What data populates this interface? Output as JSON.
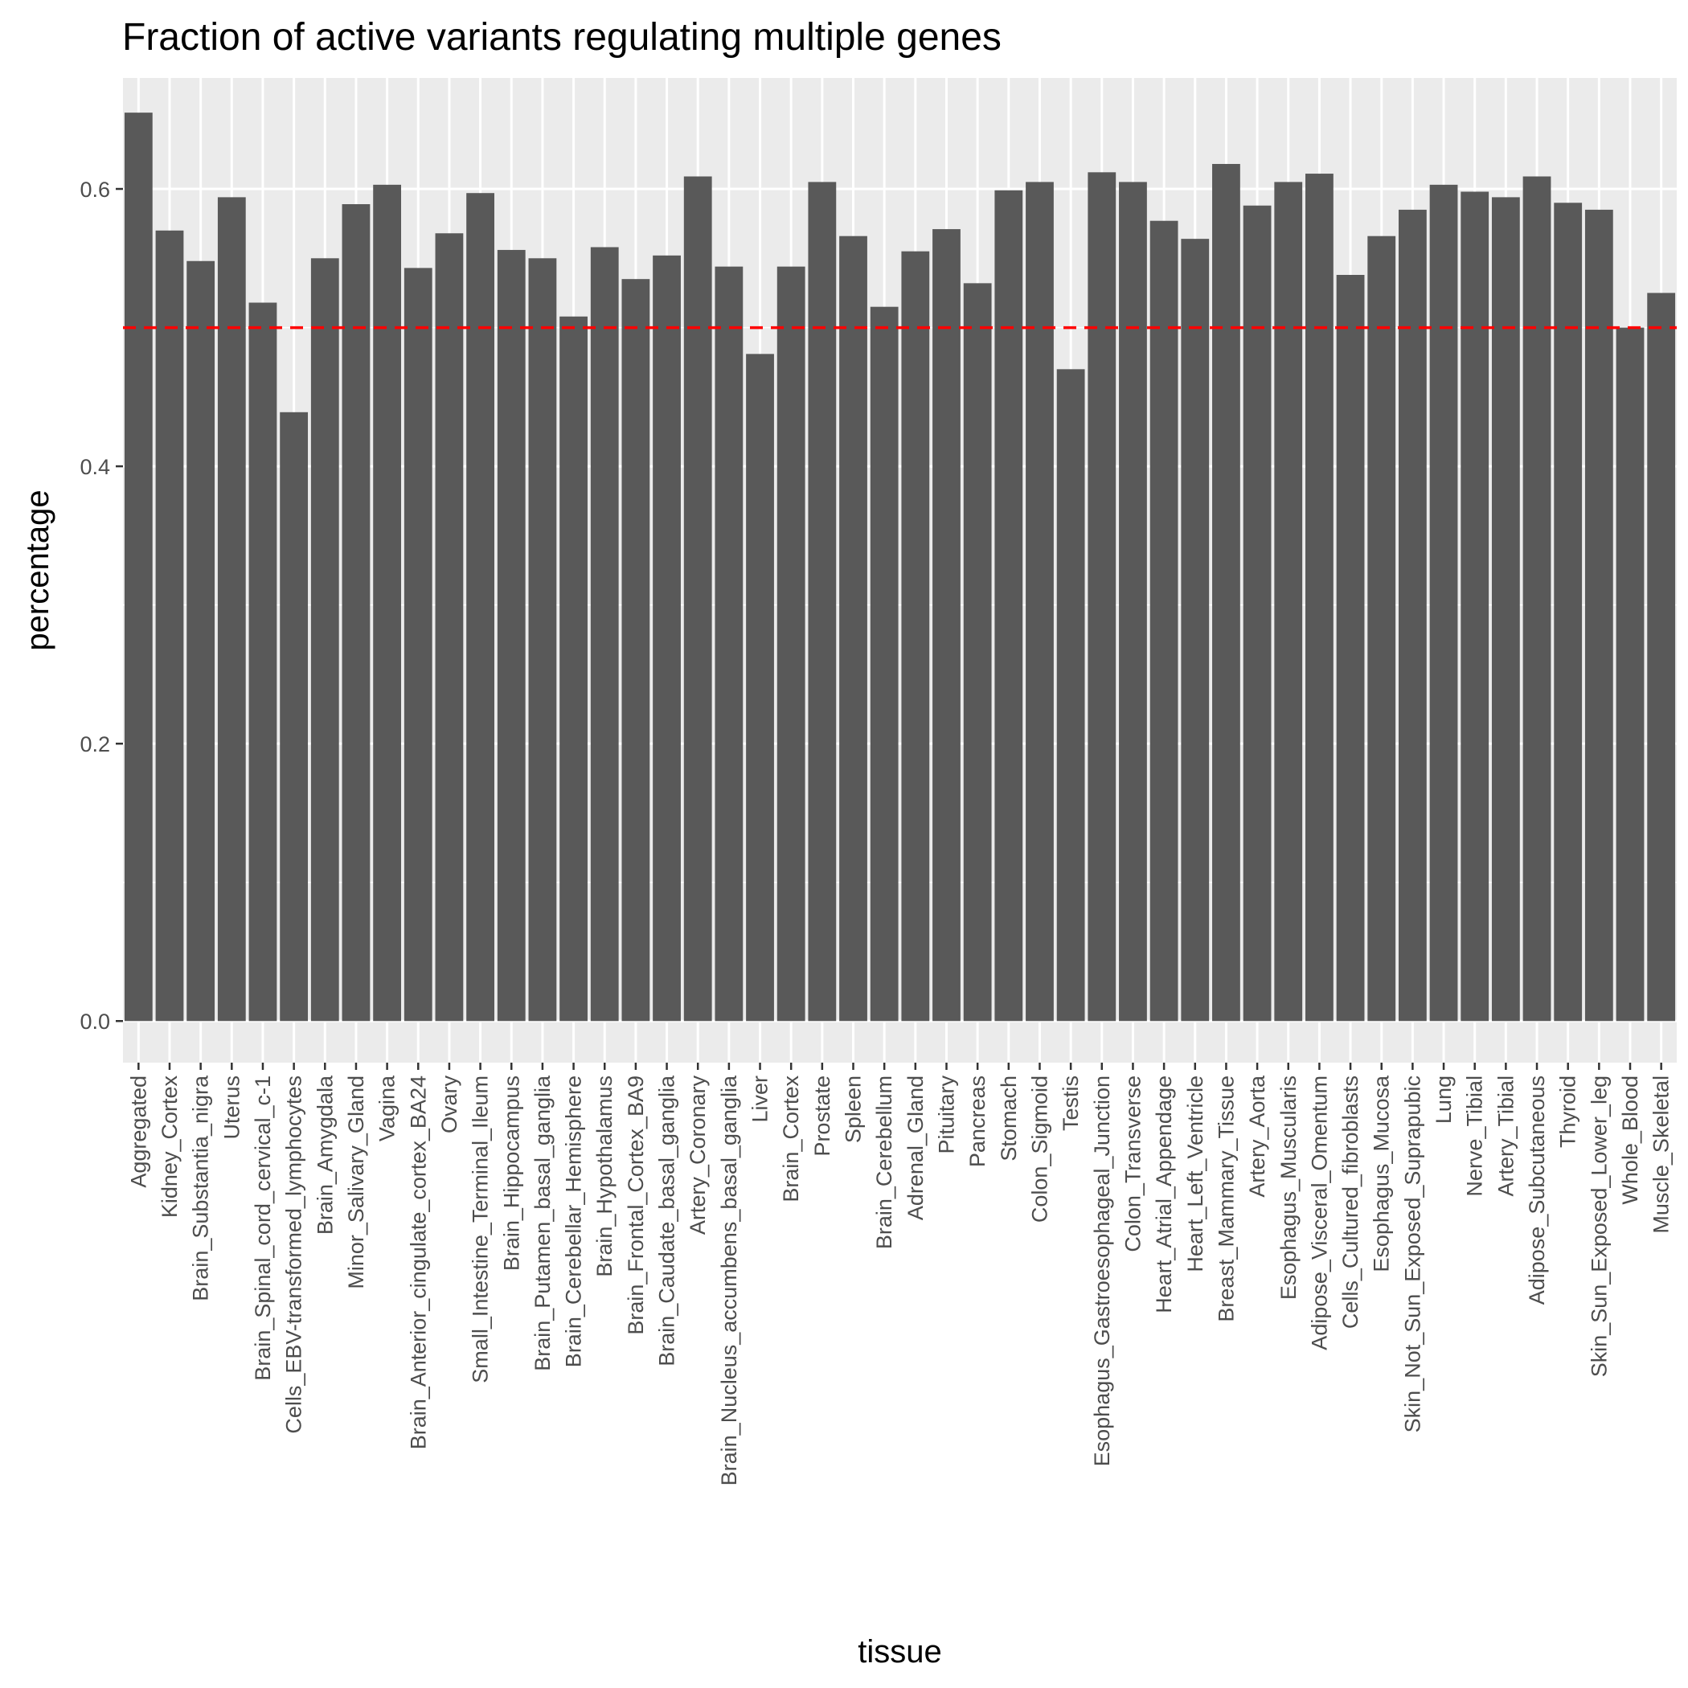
{
  "chart_data": {
    "type": "bar",
    "title": "Fraction of active variants regulating multiple genes",
    "xlabel": "tissue",
    "ylabel": "percentage",
    "ylim": [
      -0.03,
      0.68
    ],
    "yticks": [
      0.0,
      0.2,
      0.4,
      0.6
    ],
    "ytick_labels": [
      "0.0",
      "0.2",
      "0.4",
      "0.6"
    ],
    "grid": true,
    "bar_color": "#595959",
    "panel_color": "#ebebeb",
    "reference_line": {
      "value": 0.5,
      "style": "dashed",
      "color": "#ff0000"
    },
    "categories": [
      "Aggregated",
      "Kidney_Cortex",
      "Brain_Substantia_nigra",
      "Uterus",
      "Brain_Spinal_cord_cervical_c-1",
      "Cells_EBV-transformed_lymphocytes",
      "Brain_Amygdala",
      "Minor_Salivary_Gland",
      "Vagina",
      "Brain_Anterior_cingulate_cortex_BA24",
      "Ovary",
      "Small_Intestine_Terminal_Ileum",
      "Brain_Hippocampus",
      "Brain_Putamen_basal_ganglia",
      "Brain_Cerebellar_Hemisphere",
      "Brain_Hypothalamus",
      "Brain_Frontal_Cortex_BA9",
      "Brain_Caudate_basal_ganglia",
      "Artery_Coronary",
      "Brain_Nucleus_accumbens_basal_ganglia",
      "Liver",
      "Brain_Cortex",
      "Prostate",
      "Spleen",
      "Brain_Cerebellum",
      "Adrenal_Gland",
      "Pituitary",
      "Pancreas",
      "Stomach",
      "Colon_Sigmoid",
      "Testis",
      "Esophagus_Gastroesophageal_Junction",
      "Colon_Transverse",
      "Heart_Atrial_Appendage",
      "Heart_Left_Ventricle",
      "Breast_Mammary_Tissue",
      "Artery_Aorta",
      "Esophagus_Muscularis",
      "Adipose_Visceral_Omentum",
      "Cells_Cultured_fibroblasts",
      "Esophagus_Mucosa",
      "Skin_Not_Sun_Exposed_Suprapubic",
      "Lung",
      "Nerve_Tibial",
      "Artery_Tibial",
      "Adipose_Subcutaneous",
      "Thyroid",
      "Skin_Sun_Exposed_Lower_leg",
      "Whole_Blood",
      "Muscle_Skeletal"
    ],
    "values": [
      0.655,
      0.57,
      0.548,
      0.594,
      0.518,
      0.439,
      0.55,
      0.589,
      0.603,
      0.543,
      0.568,
      0.597,
      0.556,
      0.55,
      0.508,
      0.558,
      0.535,
      0.552,
      0.609,
      0.544,
      0.481,
      0.544,
      0.605,
      0.566,
      0.515,
      0.555,
      0.571,
      0.532,
      0.599,
      0.605,
      0.47,
      0.612,
      0.605,
      0.577,
      0.564,
      0.618,
      0.588,
      0.605,
      0.611,
      0.538,
      0.566,
      0.585,
      0.603,
      0.598,
      0.594,
      0.609,
      0.59,
      0.585,
      0.5,
      0.525
    ]
  }
}
